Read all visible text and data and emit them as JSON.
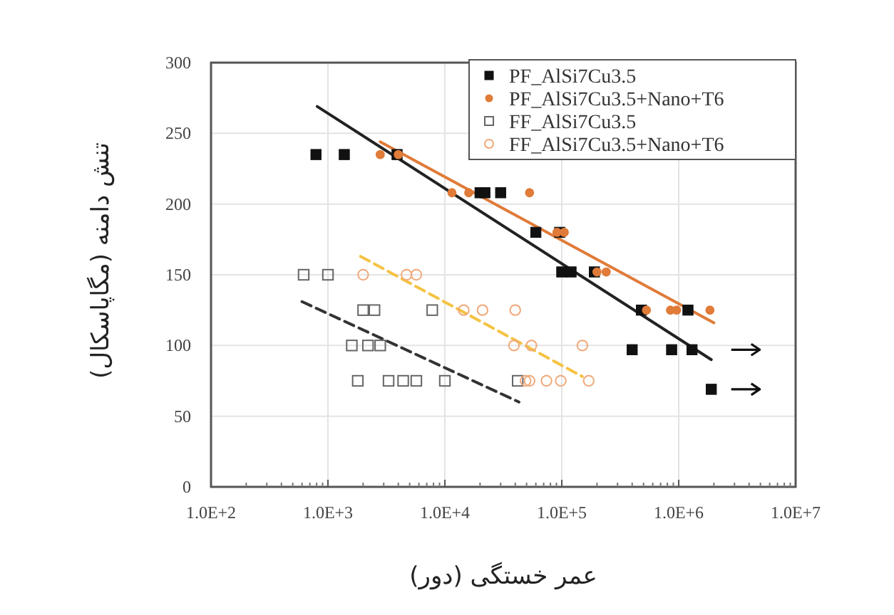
{
  "chart_data": {
    "type": "scatter",
    "xlabel": "عمر خستگی (دور)",
    "ylabel": "تنش دامنه (مگاپاسکال)",
    "log": "x",
    "xlim": [
      100,
      10000000
    ],
    "xticks": [
      {
        "value": 100,
        "label": "1.0E+2"
      },
      {
        "value": 1000,
        "label": "1.0E+3"
      },
      {
        "value": 10000,
        "label": "1.0E+4"
      },
      {
        "value": 100000,
        "label": "1.0E+5"
      },
      {
        "value": 1000000,
        "label": "1.0E+6"
      },
      {
        "value": 10000000,
        "label": "1.0E+7"
      }
    ],
    "ylim": [
      0,
      300
    ],
    "yticks": [
      0,
      50,
      100,
      150,
      200,
      250,
      300
    ],
    "grid": true,
    "legend": "top right",
    "series": [
      {
        "name": "PF_AlSi7Cu3.5",
        "type": "scatter",
        "marker": "square",
        "color": "#111111",
        "x": [
          790,
          1380,
          3900,
          20000,
          22000,
          30000,
          60000,
          96000,
          100000,
          120000,
          190000,
          480000,
          1200000,
          400000,
          870000,
          1300000,
          1900000
        ],
        "values": [
          235,
          235,
          235,
          208,
          208,
          208,
          180,
          180,
          152,
          152,
          152,
          125,
          125,
          97,
          97,
          97,
          69
        ]
      },
      {
        "name": "PF_AlSi7Cu3.5+Nano+T6",
        "type": "scatter",
        "marker": "circle",
        "color": "#e07b39",
        "x": [
          2800,
          4000,
          11500,
          16000,
          53000,
          91000,
          105000,
          200000,
          240000,
          530000,
          850000,
          960000,
          1850000
        ],
        "values": [
          235,
          235,
          208,
          208,
          208,
          180,
          180,
          152,
          152,
          125,
          125,
          125,
          125
        ]
      },
      {
        "name": "FF_AlSi7Cu3.5",
        "type": "scatter",
        "marker": "square",
        "color": "#666666",
        "x": [
          620,
          1000,
          2000,
          2500,
          7800,
          1600,
          2200,
          2800,
          1800,
          3300,
          4400,
          5700,
          10000,
          42000
        ],
        "values": [
          150,
          150,
          125,
          125,
          125,
          100,
          100,
          100,
          75,
          75,
          75,
          75,
          75,
          75
        ]
      },
      {
        "name": "FF_AlSi7Cu3.5+Nano+T6",
        "type": "scatter",
        "marker": "circle",
        "color": "#f0a878",
        "x": [
          2000,
          4700,
          5700,
          14500,
          21000,
          40000,
          39000,
          55000,
          150000,
          49000,
          53000,
          74000,
          98000,
          170000
        ],
        "values": [
          150,
          150,
          150,
          125,
          125,
          125,
          100,
          100,
          100,
          75,
          75,
          75,
          75,
          75
        ]
      },
      {
        "type": "line",
        "line_style": "solid",
        "marker": "none",
        "color": "#222222",
        "x": [
          810,
          1900000
        ],
        "values": [
          269,
          90
        ]
      },
      {
        "type": "line",
        "line_style": "solid",
        "marker": "none",
        "color": "#e07b39",
        "x": [
          2800,
          2000000
        ],
        "values": [
          244,
          116
        ]
      },
      {
        "type": "line",
        "line_style": "dashed",
        "marker": "none",
        "color": "#333333",
        "x": [
          600,
          43000
        ],
        "values": [
          131,
          60
        ]
      },
      {
        "type": "line",
        "line_style": "dashed",
        "marker": "none",
        "color": "#f5c242",
        "x": [
          1900,
          150000
        ],
        "values": [
          163,
          78
        ]
      }
    ]
  }
}
